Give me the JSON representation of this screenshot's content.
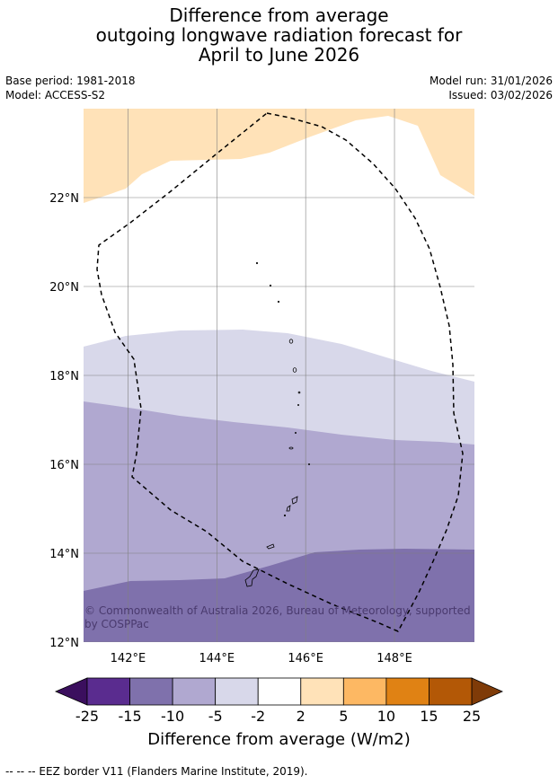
{
  "title_lines": [
    "Difference from average",
    "outgoing longwave radiation forecast for",
    "April to June 2026"
  ],
  "meta": {
    "base_period": "Base period: 1981-2018",
    "model": "Model: ACCESS-S2",
    "model_run": "Model run: 31/01/2026",
    "issued": "Issued: 03/02/2026"
  },
  "map": {
    "lon_range": [
      141.0,
      149.8
    ],
    "lat_range": [
      12.0,
      24.0
    ],
    "lon_ticks": [
      142,
      144,
      146,
      148
    ],
    "lat_ticks": [
      12,
      14,
      16,
      18,
      20,
      22
    ],
    "lon_tick_labels": [
      "142°E",
      "144°E",
      "146°E",
      "148°E"
    ],
    "lat_tick_labels": [
      "12°N",
      "14°N",
      "16°N",
      "18°N",
      "20°N",
      "22°N"
    ],
    "copyright": "© Commonwealth of Australia 2026, Bureau of Meteorology, supported by COSPPac"
  },
  "colorbar": {
    "ticks": [
      "-25",
      "-15",
      "-10",
      "-5",
      "-2",
      "2",
      "5",
      "10",
      "15",
      "25"
    ],
    "colors": [
      "#5a2c8f",
      "#7f71ac",
      "#b0a8d0",
      "#d8d8ea",
      "#ffffff",
      "#ffe2b8",
      "#fdb863",
      "#e08214",
      "#b35806"
    ],
    "under_color": "#3b0f5e",
    "over_color": "#7f3b08",
    "label": "Difference from average (W/m2)"
  },
  "footer": "--  --  -- EEZ border V11 (Flanders Marine Institute, 2019)."
}
